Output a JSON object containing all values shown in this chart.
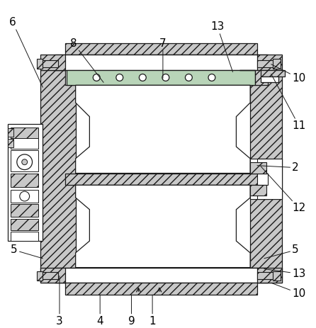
{
  "bg_color": "#ffffff",
  "line_color": "#1a1a1a",
  "hatch_fc": "#c8c8c8",
  "green_fc": "#b8d4b8",
  "label_color": "#000000",
  "fig_width": 4.46,
  "fig_height": 4.63,
  "dpi": 100
}
